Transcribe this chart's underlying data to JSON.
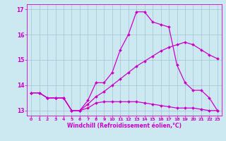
{
  "xlabel": "Windchill (Refroidissement éolien,°C)",
  "background_color": "#cce8f0",
  "grid_color": "#aac8d8",
  "line_color": "#cc00cc",
  "xlim": [
    -0.5,
    23.5
  ],
  "ylim": [
    12.8,
    17.2
  ],
  "yticks": [
    13,
    14,
    15,
    16,
    17
  ],
  "xticks": [
    0,
    1,
    2,
    3,
    4,
    5,
    6,
    7,
    8,
    9,
    10,
    11,
    12,
    13,
    14,
    15,
    16,
    17,
    18,
    19,
    20,
    21,
    22,
    23
  ],
  "series": [
    {
      "x": [
        0,
        1,
        2,
        3,
        4,
        5,
        6,
        7,
        8,
        9,
        10,
        11,
        12,
        13,
        14,
        15,
        16,
        17,
        18,
        19,
        20,
        21,
        22,
        23
      ],
      "y": [
        13.7,
        13.7,
        13.5,
        13.5,
        13.5,
        13.0,
        13.0,
        13.4,
        14.1,
        14.1,
        14.5,
        15.4,
        16.0,
        16.9,
        16.9,
        16.5,
        16.4,
        16.3,
        14.8,
        14.1,
        13.8,
        13.8,
        13.5,
        13.0
      ]
    },
    {
      "x": [
        0,
        1,
        2,
        3,
        4,
        5,
        6,
        7,
        8,
        9,
        10,
        11,
        12,
        13,
        14,
        15,
        16,
        17,
        18,
        19,
        20,
        21,
        22,
        23
      ],
      "y": [
        13.7,
        13.7,
        13.5,
        13.5,
        13.5,
        13.0,
        13.0,
        13.25,
        13.55,
        13.75,
        14.0,
        14.25,
        14.5,
        14.75,
        14.95,
        15.15,
        15.35,
        15.5,
        15.6,
        15.7,
        15.6,
        15.4,
        15.2,
        15.05
      ]
    },
    {
      "x": [
        0,
        1,
        2,
        3,
        4,
        5,
        6,
        7,
        8,
        9,
        10,
        11,
        12,
        13,
        14,
        15,
        16,
        17,
        18,
        19,
        20,
        21,
        22,
        23
      ],
      "y": [
        13.7,
        13.7,
        13.5,
        13.5,
        13.5,
        13.0,
        13.0,
        13.1,
        13.3,
        13.35,
        13.35,
        13.35,
        13.35,
        13.35,
        13.3,
        13.25,
        13.2,
        13.15,
        13.1,
        13.1,
        13.1,
        13.05,
        13.0,
        13.0
      ]
    }
  ]
}
